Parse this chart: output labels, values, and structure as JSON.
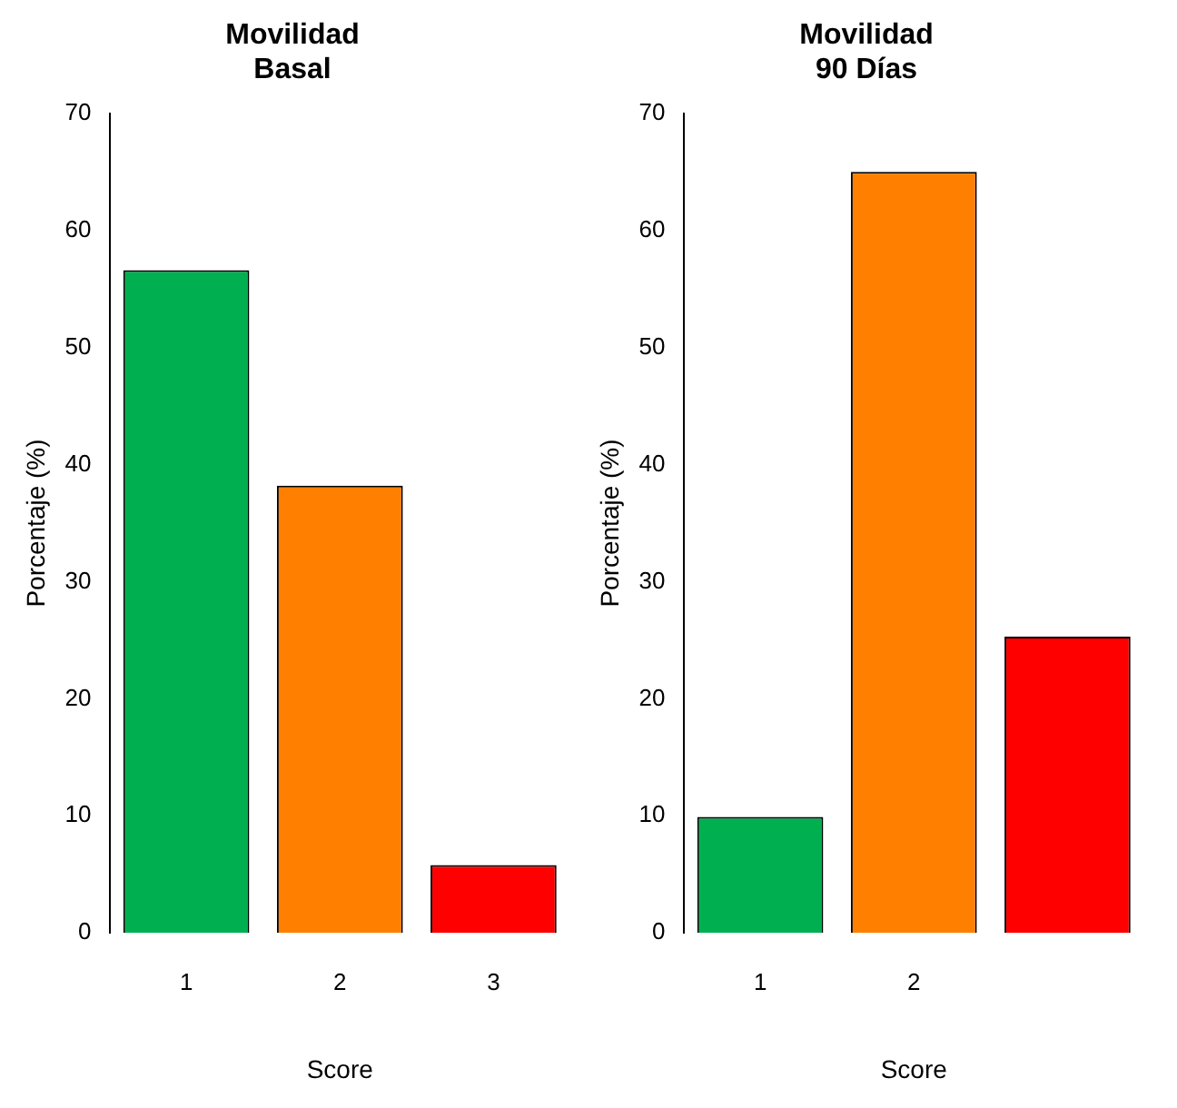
{
  "chart_data": [
    {
      "type": "bar",
      "title": "Movilidad\nBasal",
      "xlabel": "Score",
      "ylabel": "Porcentaje (%)",
      "categories": [
        "1",
        "2",
        "3"
      ],
      "values": [
        56.6,
        38.2,
        5.8
      ],
      "colors": [
        "#00b050",
        "#ff8000",
        "#ff0000"
      ],
      "ylim": [
        0,
        70
      ],
      "yticks": [
        0,
        10,
        20,
        30,
        40,
        50,
        60,
        70
      ],
      "grid": false,
      "legend": false
    },
    {
      "type": "bar",
      "title": "Movilidad\n90 Días",
      "xlabel": "Score",
      "ylabel": "Porcentaje (%)",
      "categories": [
        "1",
        "2",
        null
      ],
      "values": [
        9.9,
        65.0,
        25.3
      ],
      "colors": [
        "#00b050",
        "#ff8000",
        "#ff0000"
      ],
      "ylim": [
        0,
        70
      ],
      "yticks": [
        0,
        10,
        20,
        30,
        40,
        50,
        60,
        70
      ],
      "grid": false,
      "legend": false
    }
  ]
}
